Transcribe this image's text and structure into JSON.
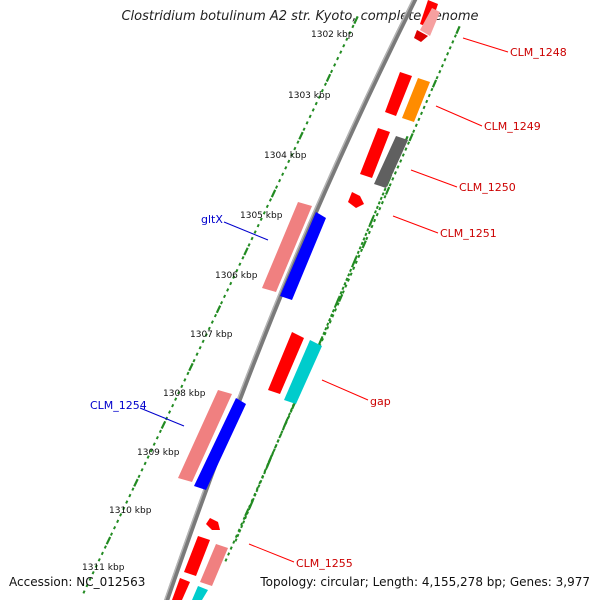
{
  "title": "Clostridium botulinum A2 str. Kyoto, complete genome",
  "footer": {
    "accession": "Accession: NC_012563",
    "summary": "Topology: circular; Length: 4,155,278 bp; Genes: 3,977"
  },
  "scale_labels": [
    "1302 kbp",
    "1303 kbp",
    "1304 kbp",
    "1305 kbp",
    "1306 kbp",
    "1307 kbp",
    "1308 kbp",
    "1309 kbp",
    "1310 kbp",
    "1311 kbp"
  ],
  "feature_labels": [
    {
      "text": "CLM_1248",
      "color": "#cc0000"
    },
    {
      "text": "CLM_1249",
      "color": "#cc0000"
    },
    {
      "text": "CLM_1250",
      "color": "#cc0000"
    },
    {
      "text": "CLM_1251",
      "color": "#cc0000"
    },
    {
      "text": "gltX",
      "color": "#0000cc"
    },
    {
      "text": "gap",
      "color": "#cc0000"
    },
    {
      "text": "CLM_1254",
      "color": "#0000cc"
    },
    {
      "text": "CLM_1255",
      "color": "#cc0000"
    }
  ],
  "colors": {
    "cds_red": "#ff0000",
    "cds_pink": "#f08080",
    "cds_blue": "#0000ff",
    "cds_orange": "#ff8c00",
    "cds_gray": "#606060",
    "cds_cyan": "#00cccc",
    "tick_green": "#228b22",
    "backbone": "#808080"
  }
}
